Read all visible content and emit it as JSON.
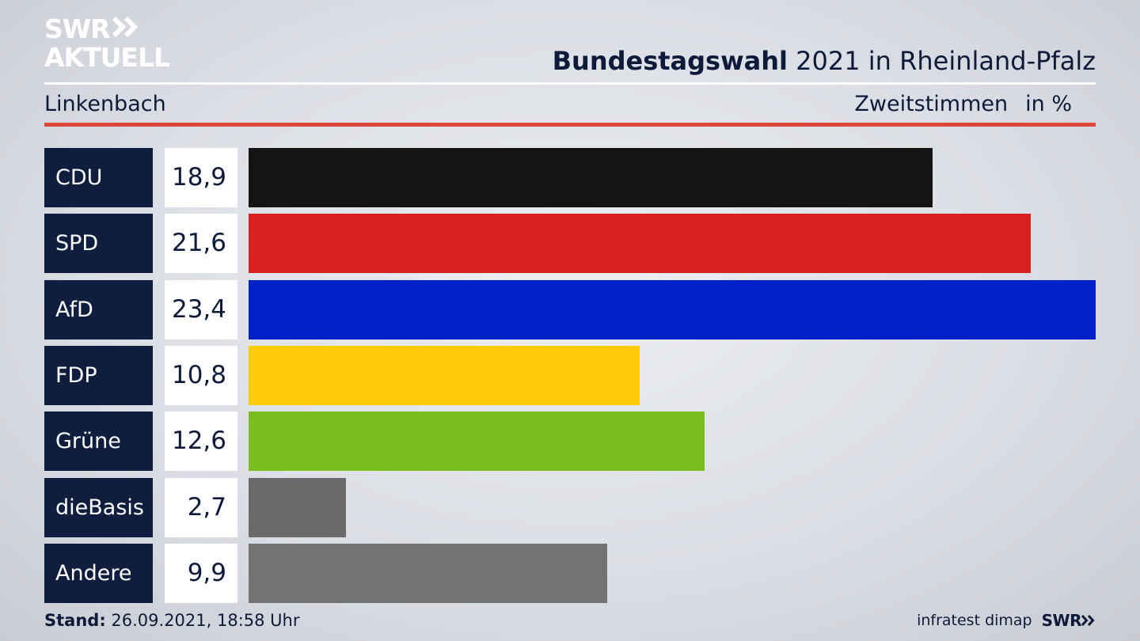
{
  "brand": {
    "line1": "SWR",
    "line2": "AKTUELL"
  },
  "header": {
    "title_bold": "Bundestagswahl",
    "title_rest": " 2021 in Rheinland-Pfalz",
    "subtitle": "Linkenbach",
    "measure": "Zweitstimmen",
    "unit": "in %"
  },
  "chart_data": {
    "type": "bar",
    "orientation": "horizontal",
    "categories": [
      "CDU",
      "SPD",
      "AfD",
      "FDP",
      "Grüne",
      "dieBasis",
      "Andere"
    ],
    "values": [
      18.9,
      21.6,
      23.4,
      10.8,
      12.6,
      2.7,
      9.9
    ],
    "value_labels": [
      "18,9",
      "21,6",
      "23,4",
      "10,8",
      "12,6",
      "2,7",
      "9,9"
    ],
    "colors": [
      "#141414",
      "#d8201f",
      "#0021c8",
      "#fecb09",
      "#78be1e",
      "#6a6a6a",
      "#737374"
    ],
    "xlim": [
      0,
      23.4
    ],
    "grid": false,
    "legend": "none"
  },
  "footer": {
    "stand_label": "Stand:",
    "stand_value": " 26.09.2021, 18:58 Uhr",
    "source": "infratest dimap",
    "brand": "SWR"
  }
}
